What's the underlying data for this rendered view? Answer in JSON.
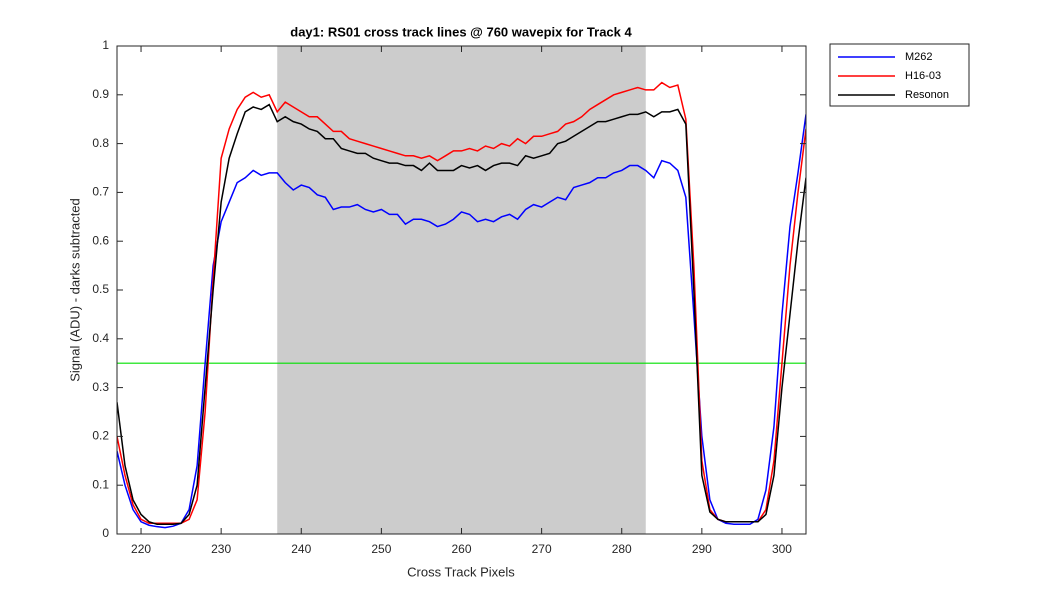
{
  "chart_data": {
    "type": "line",
    "title": "day1: RS01  cross track lines @ 760 wavepix for Track 4",
    "x_label": "Cross Track Pixels",
    "y_label": "Signal (ADU) - darks subtracted",
    "x": [
      217,
      218,
      219,
      220,
      221,
      222,
      223,
      224,
      225,
      226,
      227,
      228,
      229,
      230,
      231,
      232,
      233,
      234,
      235,
      236,
      237,
      238,
      239,
      240,
      241,
      242,
      243,
      244,
      245,
      246,
      247,
      248,
      249,
      250,
      251,
      252,
      253,
      254,
      255,
      256,
      257,
      258,
      259,
      260,
      261,
      262,
      263,
      264,
      265,
      266,
      267,
      268,
      269,
      270,
      271,
      272,
      273,
      274,
      275,
      276,
      277,
      278,
      279,
      280,
      281,
      282,
      283,
      284,
      285,
      286,
      287,
      288,
      289,
      290,
      291,
      292,
      293,
      294,
      295,
      296,
      297,
      298,
      299,
      300,
      301,
      302,
      303
    ],
    "series": [
      {
        "name": "M262",
        "color": "#0000ff",
        "values": [
          0.17,
          0.1,
          0.05,
          0.025,
          0.018,
          0.015,
          0.013,
          0.016,
          0.022,
          0.05,
          0.14,
          0.35,
          0.55,
          0.64,
          0.68,
          0.72,
          0.73,
          0.745,
          0.735,
          0.74,
          0.74,
          0.72,
          0.705,
          0.715,
          0.71,
          0.695,
          0.69,
          0.665,
          0.67,
          0.67,
          0.675,
          0.665,
          0.66,
          0.665,
          0.655,
          0.655,
          0.635,
          0.645,
          0.645,
          0.64,
          0.63,
          0.635,
          0.645,
          0.66,
          0.655,
          0.64,
          0.645,
          0.64,
          0.65,
          0.655,
          0.645,
          0.665,
          0.675,
          0.67,
          0.68,
          0.69,
          0.685,
          0.71,
          0.715,
          0.72,
          0.73,
          0.73,
          0.74,
          0.745,
          0.755,
          0.755,
          0.745,
          0.73,
          0.765,
          0.76,
          0.745,
          0.69,
          0.45,
          0.2,
          0.07,
          0.03,
          0.022,
          0.02,
          0.02,
          0.02,
          0.03,
          0.09,
          0.22,
          0.45,
          0.63,
          0.74,
          0.86
        ]
      },
      {
        "name": "H16-03",
        "color": "#ff0000",
        "values": [
          0.2,
          0.12,
          0.06,
          0.03,
          0.022,
          0.022,
          0.022,
          0.022,
          0.022,
          0.03,
          0.07,
          0.25,
          0.52,
          0.77,
          0.83,
          0.87,
          0.895,
          0.905,
          0.895,
          0.9,
          0.865,
          0.885,
          0.875,
          0.865,
          0.855,
          0.855,
          0.84,
          0.825,
          0.825,
          0.81,
          0.805,
          0.8,
          0.795,
          0.79,
          0.785,
          0.78,
          0.775,
          0.775,
          0.77,
          0.775,
          0.765,
          0.775,
          0.785,
          0.785,
          0.79,
          0.785,
          0.795,
          0.79,
          0.8,
          0.795,
          0.81,
          0.8,
          0.815,
          0.815,
          0.82,
          0.825,
          0.84,
          0.845,
          0.855,
          0.87,
          0.88,
          0.89,
          0.9,
          0.905,
          0.91,
          0.915,
          0.91,
          0.91,
          0.925,
          0.915,
          0.92,
          0.85,
          0.55,
          0.15,
          0.05,
          0.03,
          0.025,
          0.025,
          0.025,
          0.025,
          0.025,
          0.05,
          0.15,
          0.35,
          0.55,
          0.7,
          0.83
        ]
      },
      {
        "name": "Resonon",
        "color": "#000000",
        "values": [
          0.27,
          0.14,
          0.07,
          0.04,
          0.025,
          0.02,
          0.02,
          0.02,
          0.022,
          0.04,
          0.1,
          0.3,
          0.5,
          0.68,
          0.77,
          0.82,
          0.865,
          0.875,
          0.87,
          0.88,
          0.845,
          0.855,
          0.845,
          0.84,
          0.83,
          0.825,
          0.81,
          0.81,
          0.79,
          0.785,
          0.78,
          0.78,
          0.77,
          0.765,
          0.76,
          0.76,
          0.755,
          0.755,
          0.745,
          0.76,
          0.745,
          0.745,
          0.745,
          0.755,
          0.75,
          0.755,
          0.745,
          0.755,
          0.76,
          0.76,
          0.755,
          0.775,
          0.77,
          0.775,
          0.78,
          0.8,
          0.805,
          0.815,
          0.825,
          0.835,
          0.845,
          0.845,
          0.85,
          0.855,
          0.86,
          0.86,
          0.865,
          0.855,
          0.865,
          0.865,
          0.87,
          0.84,
          0.5,
          0.12,
          0.045,
          0.03,
          0.025,
          0.025,
          0.025,
          0.025,
          0.025,
          0.04,
          0.12,
          0.3,
          0.45,
          0.6,
          0.73
        ]
      }
    ],
    "shaded_region": {
      "x": [
        237,
        283
      ],
      "color": "#cccccc"
    },
    "hline": {
      "y": 0.35,
      "color": "#00e000"
    },
    "xlim": [
      217,
      303
    ],
    "ylim": [
      0,
      1
    ],
    "xticks": [
      220,
      230,
      240,
      250,
      260,
      270,
      280,
      290,
      300
    ],
    "yticks": [
      0,
      0.1,
      0.2,
      0.3,
      0.4,
      0.5,
      0.6,
      0.7,
      0.8,
      0.9,
      1
    ],
    "legend": "outside-right"
  }
}
